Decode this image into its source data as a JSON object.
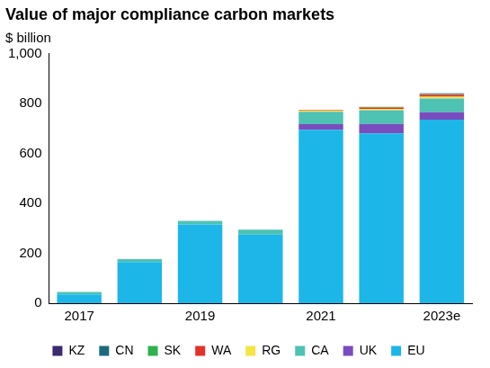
{
  "chart_data": {
    "type": "bar",
    "title": "Value of major compliance carbon markets",
    "y_label": "$ billion",
    "categories": [
      "2017",
      null,
      "2019",
      null,
      "2021",
      null,
      "2023e"
    ],
    "series": [
      {
        "name": "KZ",
        "color": "#3b2a6e",
        "values": [
          0,
          0,
          0,
          0,
          0,
          0,
          1
        ]
      },
      {
        "name": "CN",
        "color": "#1d6a7d",
        "values": [
          0,
          0,
          0,
          0,
          0,
          0,
          2
        ]
      },
      {
        "name": "SK",
        "color": "#2fb24c",
        "values": [
          0,
          0,
          0,
          0,
          0,
          3,
          3
        ]
      },
      {
        "name": "WA",
        "color": "#e5312b",
        "values": [
          0,
          0,
          0,
          0,
          3,
          5,
          8
        ]
      },
      {
        "name": "RG",
        "color": "#f4e545",
        "values": [
          0,
          0,
          0,
          0,
          5,
          6,
          7
        ]
      },
      {
        "name": "CA",
        "color": "#4ec2b3",
        "values": [
          10,
          12,
          15,
          20,
          50,
          55,
          55
        ]
      },
      {
        "name": "UK",
        "color": "#7a4dbf",
        "values": [
          0,
          0,
          0,
          0,
          22,
          38,
          30
        ]
      },
      {
        "name": "EU",
        "color": "#1cb6e8",
        "values": [
          35,
          165,
          315,
          275,
          695,
          680,
          735
        ]
      }
    ],
    "ylim": [
      0,
      1000
    ],
    "yticks": [
      0,
      200,
      400,
      600,
      800,
      {
        "value": 1000,
        "label": "1,000"
      }
    ],
    "stacked": true,
    "grid": false,
    "legend": "bottom"
  }
}
